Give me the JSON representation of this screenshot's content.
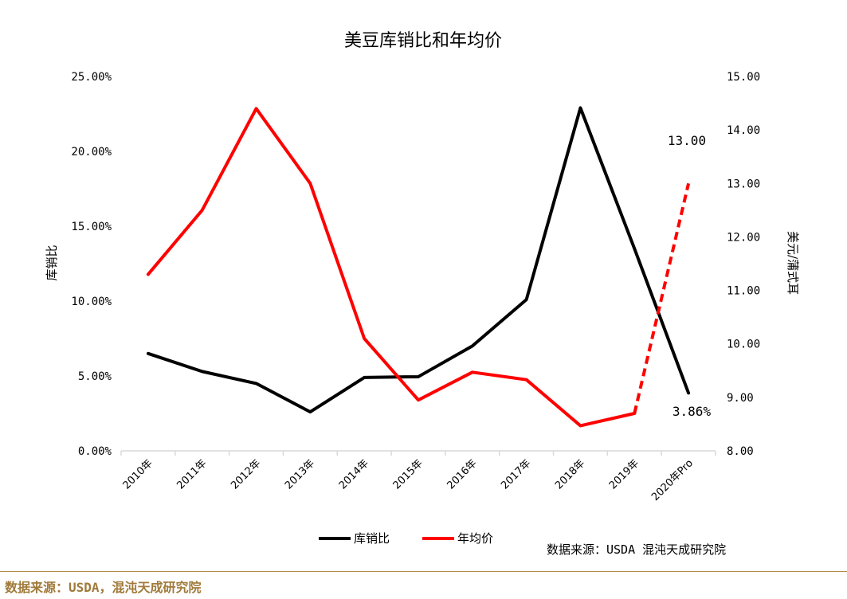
{
  "chart_data": {
    "type": "line",
    "title": "美豆库销比和年均价",
    "categories": [
      "2010年",
      "2011年",
      "2012年",
      "2013年",
      "2014年",
      "2015年",
      "2016年",
      "2017年",
      "2018年",
      "2019年",
      "2020年Pro"
    ],
    "y_left": {
      "label": "库销比",
      "ticks": [
        "0.00%",
        "5.00%",
        "10.00%",
        "15.00%",
        "20.00%",
        "25.00%"
      ],
      "range": [
        0,
        25
      ]
    },
    "y_right": {
      "label": "美元/蒲式耳",
      "ticks": [
        "8.00",
        "9.00",
        "10.00",
        "11.00",
        "12.00",
        "13.00",
        "14.00",
        "15.00"
      ],
      "range": [
        8,
        15
      ]
    },
    "series": [
      {
        "name": "库销比",
        "axis": "left",
        "color": "#000000",
        "values": [
          6.5,
          5.3,
          4.5,
          2.6,
          4.9,
          4.95,
          7.0,
          10.1,
          22.9,
          13.5,
          3.86
        ]
      },
      {
        "name": "年均价",
        "axis": "right",
        "color": "#ff0000",
        "values": [
          11.3,
          12.5,
          14.4,
          13.0,
          10.1,
          8.95,
          9.47,
          9.33,
          8.47,
          8.7,
          13.0
        ],
        "dashed_from_index": 9
      }
    ],
    "annotations": [
      "13.00",
      "3.86%"
    ],
    "legend_position": "bottom",
    "source_note": "数据来源：USDA 混沌天成研究院"
  },
  "footer": {
    "text": "数据来源：USDA，混沌天成研究院"
  }
}
